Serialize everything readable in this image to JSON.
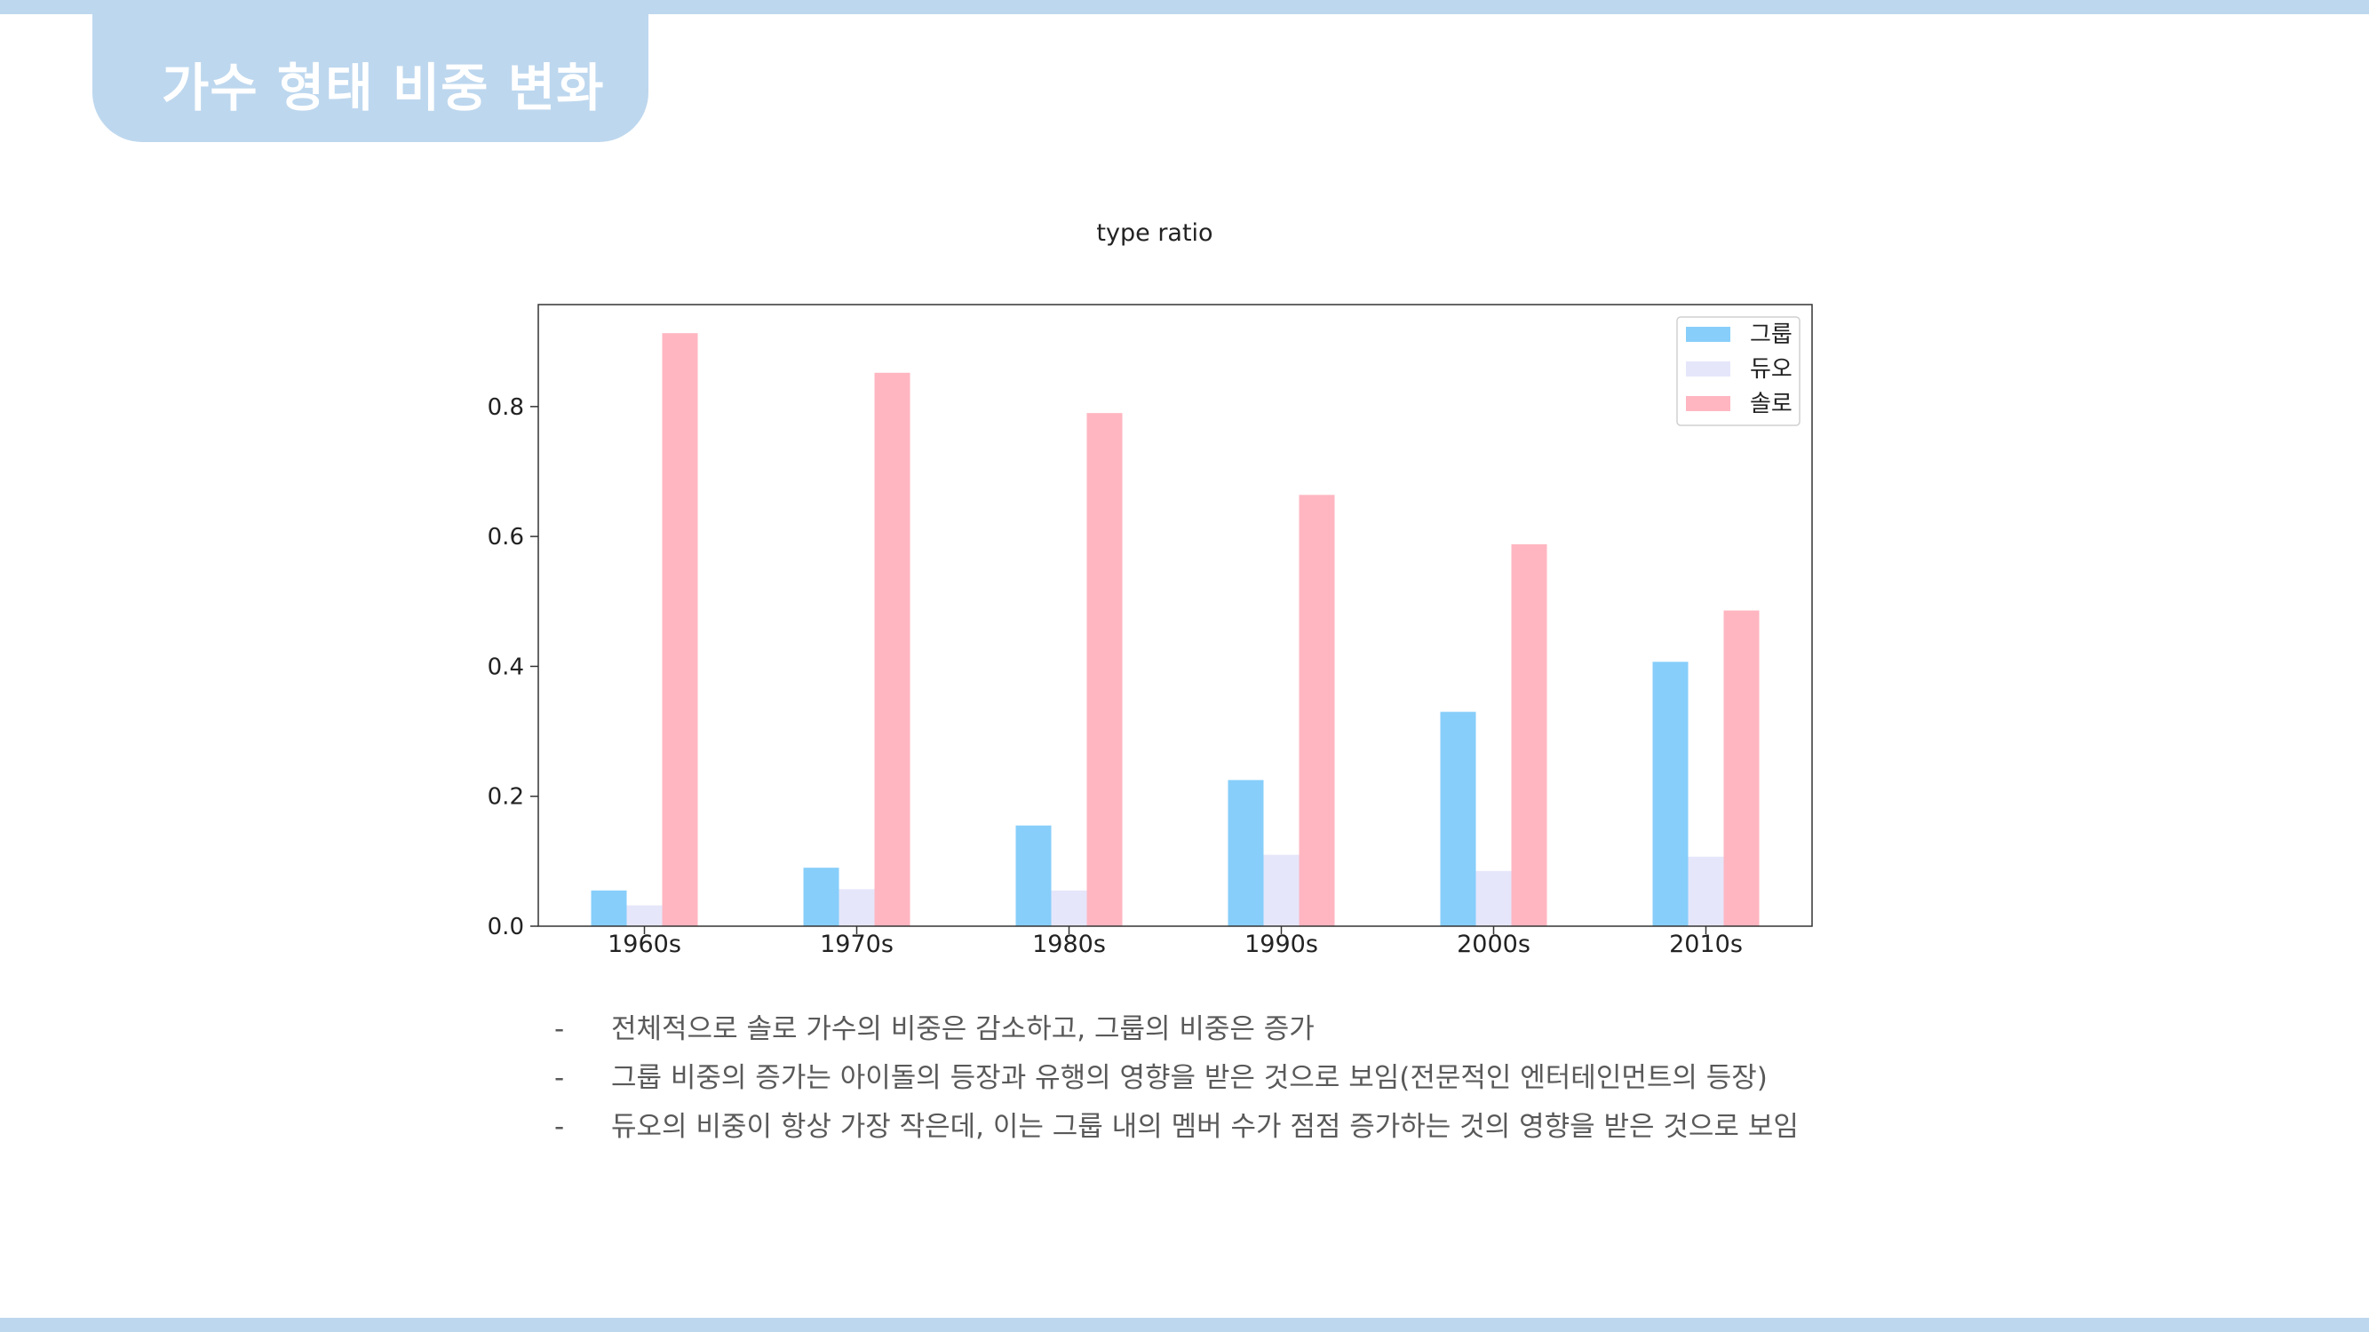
{
  "page": {
    "title": "가수 형태 비중 변화",
    "band_color": "#bdd7ee"
  },
  "chart_data": {
    "type": "bar",
    "title": "type ratio",
    "xlabel": "",
    "ylabel": "",
    "categories": [
      "1960s",
      "1970s",
      "1980s",
      "1990s",
      "2000s",
      "2010s"
    ],
    "series": [
      {
        "name": "그룹",
        "color": "#87cefa",
        "values": [
          0.055,
          0.09,
          0.155,
          0.225,
          0.33,
          0.407
        ]
      },
      {
        "name": "듀오",
        "color": "#e6e6fa",
        "values": [
          0.032,
          0.057,
          0.055,
          0.11,
          0.085,
          0.107
        ]
      },
      {
        "name": "솔로",
        "color": "#ffb6c1",
        "values": [
          0.913,
          0.852,
          0.79,
          0.664,
          0.588,
          0.486
        ]
      }
    ],
    "ylim": [
      0,
      0.957
    ],
    "yticks": [
      "0.0",
      "0.2",
      "0.4",
      "0.6",
      "0.8"
    ],
    "grid": false,
    "legend": "top-right"
  },
  "notes": {
    "bullet": "-",
    "items": [
      "전체적으로 솔로 가수의 비중은 감소하고, 그룹의 비중은 증가",
      "그룹 비중의 증가는 아이돌의 등장과 유행의 영향을 받은 것으로 보임(전문적인 엔터테인먼트의 등장)",
      "듀오의 비중이 항상 가장 작은데, 이는 그룹 내의 멤버 수가 점점 증가하는 것의 영향을 받은 것으로 보임"
    ]
  }
}
